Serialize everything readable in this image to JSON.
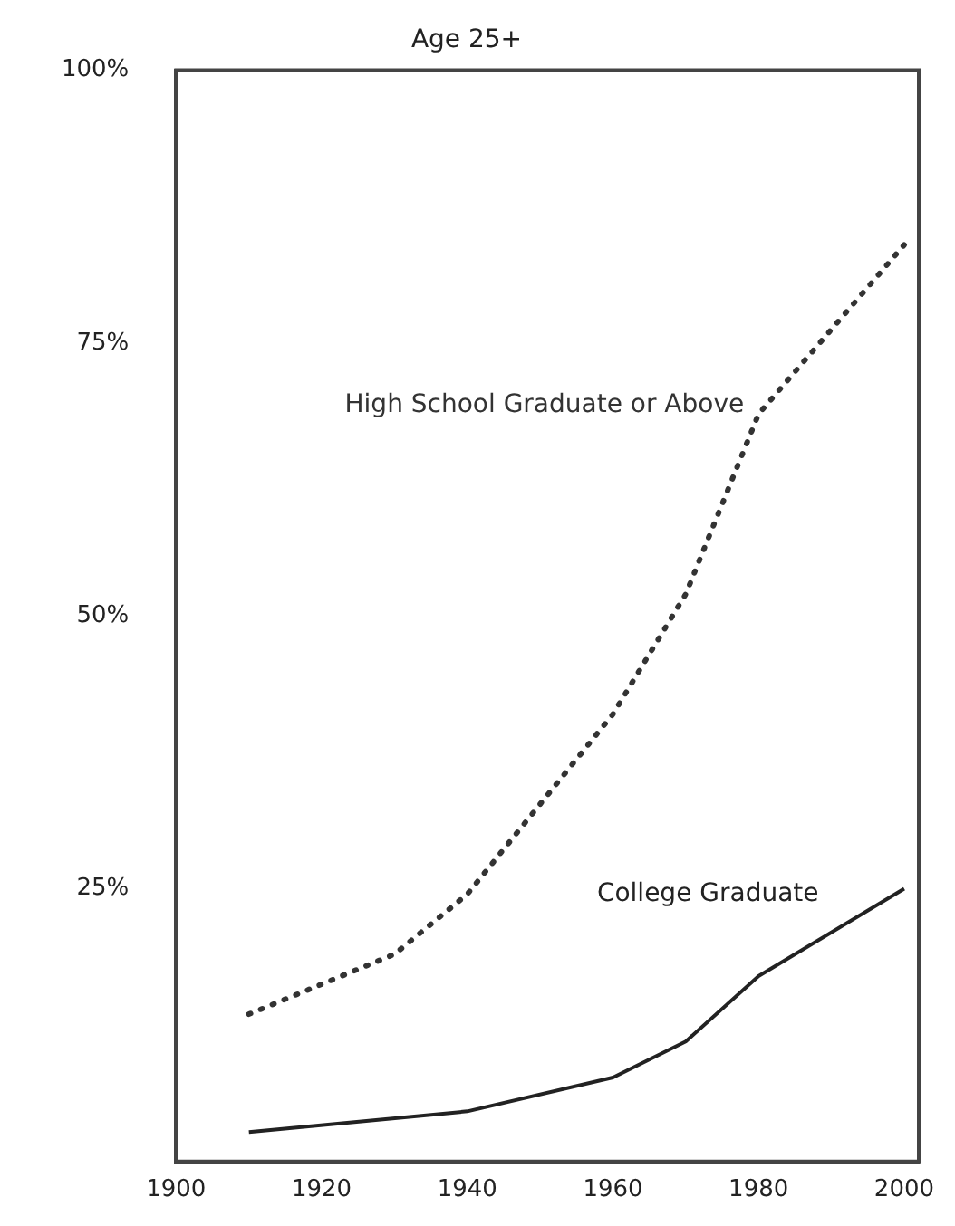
{
  "chart_data": {
    "type": "line",
    "title": "Age 25+",
    "xlim": [
      1900,
      2002
    ],
    "xticks": [
      1900,
      1920,
      1940,
      1960,
      1980,
      2000
    ],
    "ylim": [
      0,
      100
    ],
    "yticks": [
      {
        "value": 25,
        "label": "25%"
      },
      {
        "value": 50,
        "label": "50%"
      },
      {
        "value": 75,
        "label": "75%"
      },
      {
        "value": 100,
        "label": "100%"
      }
    ],
    "grid": false,
    "legend": false,
    "marker": "none",
    "series": [
      {
        "name": "High School Graduate or Above",
        "color": "#333333",
        "line_style": "dotted",
        "x": [
          1910,
          1930,
          1940,
          1960,
          1970,
          1980,
          2000
        ],
        "values": [
          13.5,
          19,
          24.5,
          41,
          52,
          68.5,
          84
        ]
      },
      {
        "name": "College Graduate",
        "color": "#222222",
        "line_style": "solid",
        "x": [
          1910,
          1940,
          1960,
          1970,
          1980,
          2000
        ],
        "values": [
          2.7,
          4.6,
          7.7,
          11,
          17,
          25
        ]
      }
    ]
  }
}
